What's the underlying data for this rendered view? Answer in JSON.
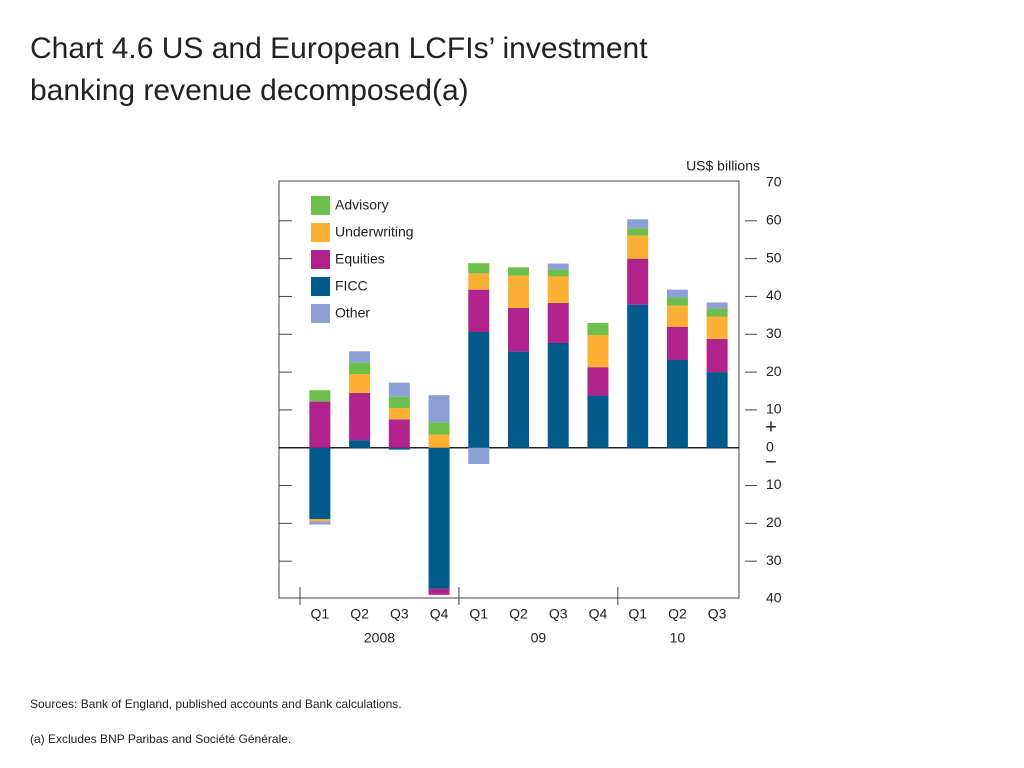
{
  "chart_data": {
    "type": "stacked_bar",
    "title_lines": [
      "Chart 4.6  US and European LCFIs’ investment",
      "banking revenue decomposed(a)"
    ],
    "y_axis_label": "US$ billions",
    "annotations": [
      "+",
      "−"
    ],
    "sources": "Sources:  Bank of England, published accounts and Bank calculations.",
    "footnote": "(a)  Excludes BNP Paribas and Société Générale.",
    "categories": [
      "Q1",
      "Q2",
      "Q3",
      "Q4",
      "Q1",
      "Q2",
      "Q3",
      "Q4",
      "Q1",
      "Q2",
      "Q3"
    ],
    "category_groups": [
      {
        "label": "2008",
        "size": 4
      },
      {
        "label": "09",
        "size": 4
      },
      {
        "label": "10",
        "size": 3
      }
    ],
    "series": [
      {
        "name": "FICC",
        "color": "#005a8c",
        "values": [
          -18.9,
          2,
          -0.5,
          -37.3,
          30.6,
          25.5,
          27.7,
          13.8,
          37.8,
          23.2,
          20
        ]
      },
      {
        "name": "Equities",
        "color": "#b0228c",
        "values": [
          12.2,
          12.5,
          7.5,
          -1.6,
          11.2,
          11.5,
          10.6,
          7.5,
          12.2,
          8.8,
          8.8
        ]
      },
      {
        "name": "Underwriting",
        "color": "#fbb034",
        "values": [
          -0.6,
          5,
          3,
          3.5,
          4.3,
          8.5,
          7,
          8.5,
          6.1,
          5.6,
          5.9
        ]
      },
      {
        "name": "Advisory",
        "color": "#6cbf4a",
        "values": [
          3,
          3,
          3,
          3.2,
          2.7,
          2.2,
          1.8,
          3.2,
          1.9,
          2.1,
          2.1
        ]
      },
      {
        "name": "Other",
        "color": "#8c9fd4",
        "values": [
          -0.8,
          3,
          3.7,
          7.2,
          -4.3,
          0,
          1.6,
          0,
          2.4,
          2.1,
          1.6
        ]
      }
    ],
    "legend_order": [
      3,
      2,
      1,
      0,
      4
    ],
    "ylim": [
      -40,
      70
    ],
    "yticks": [
      {
        "value": -40,
        "label": "40"
      },
      {
        "value": -30,
        "label": "30"
      },
      {
        "value": -20,
        "label": "20"
      },
      {
        "value": -10,
        "label": "10"
      },
      0,
      10,
      20,
      30,
      40,
      50,
      60,
      70
    ],
    "legend": "top-left"
  }
}
